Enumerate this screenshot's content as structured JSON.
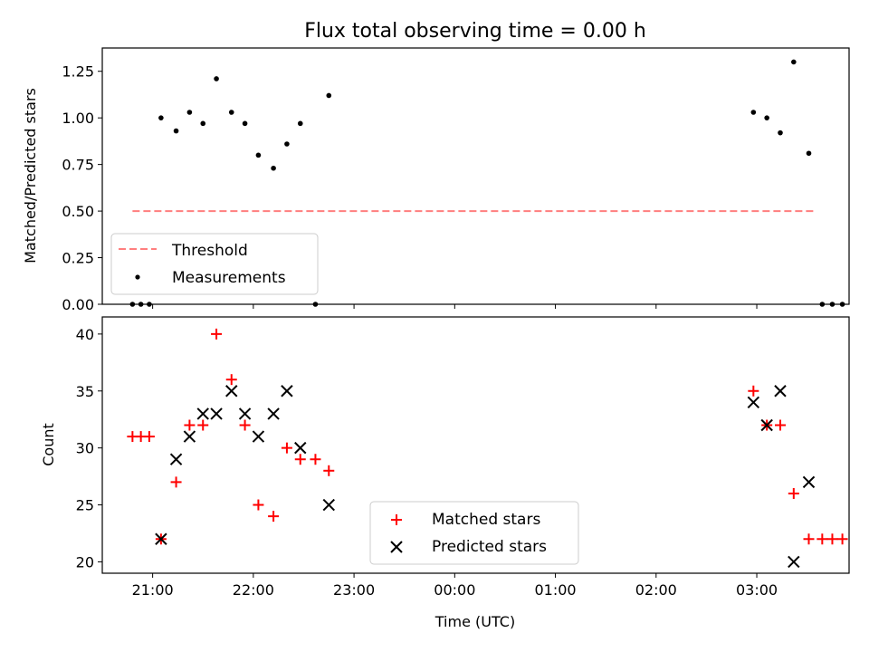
{
  "figure": {
    "title": "Flux total observing time = 0.00 h"
  },
  "chart_data": [
    {
      "type": "scatter",
      "panel": "top",
      "title": "Flux total observing time = 0.00 h",
      "xlabel": "",
      "ylabel": "Matched/Predicted stars",
      "xlim": [
        "20:30",
        "03:55"
      ],
      "ylim": [
        0,
        1.375
      ],
      "yticks": [
        "0.00",
        "0.25",
        "0.50",
        "0.75",
        "1.00",
        "1.25"
      ],
      "legend_position": "lower-left",
      "threshold": {
        "name": "Threshold",
        "color": "#ff7f7f",
        "style": "dashed",
        "value": 0.5,
        "x_range": [
          "20:48",
          "03:35"
        ]
      },
      "series": [
        {
          "name": "Measurements",
          "color": "#000000",
          "marker": "dot",
          "points": [
            {
              "x": "20:48",
              "y": 0.0
            },
            {
              "x": "20:53",
              "y": 0.0
            },
            {
              "x": "20:58",
              "y": 0.0
            },
            {
              "x": "21:05",
              "y": 1.0
            },
            {
              "x": "21:14",
              "y": 0.93
            },
            {
              "x": "21:22",
              "y": 1.03
            },
            {
              "x": "21:30",
              "y": 0.97
            },
            {
              "x": "21:38",
              "y": 1.21
            },
            {
              "x": "21:47",
              "y": 1.03
            },
            {
              "x": "21:55",
              "y": 0.97
            },
            {
              "x": "22:03",
              "y": 0.8
            },
            {
              "x": "22:12",
              "y": 0.73
            },
            {
              "x": "22:20",
              "y": 0.86
            },
            {
              "x": "22:28",
              "y": 0.97
            },
            {
              "x": "22:37",
              "y": 0.0
            },
            {
              "x": "22:45",
              "y": 1.12
            },
            {
              "x": "02:58",
              "y": 1.03
            },
            {
              "x": "03:06",
              "y": 1.0
            },
            {
              "x": "03:14",
              "y": 0.92
            },
            {
              "x": "03:22",
              "y": 1.3
            },
            {
              "x": "03:31",
              "y": 0.81
            },
            {
              "x": "03:39",
              "y": 0.0
            },
            {
              "x": "03:45",
              "y": 0.0
            },
            {
              "x": "03:51",
              "y": 0.0
            }
          ]
        }
      ]
    },
    {
      "type": "scatter",
      "panel": "bottom",
      "title": "",
      "xlabel": "Time (UTC)",
      "ylabel": "Count",
      "xlim": [
        "20:30",
        "03:55"
      ],
      "ylim": [
        19,
        41.5
      ],
      "xticks": [
        "21:00",
        "22:00",
        "23:00",
        "00:00",
        "01:00",
        "02:00",
        "03:00"
      ],
      "yticks": [
        "20",
        "25",
        "30",
        "35",
        "40"
      ],
      "legend_position": "lower-center",
      "series": [
        {
          "name": "Matched stars",
          "color": "#ff0000",
          "marker": "plus",
          "points": [
            {
              "x": "20:48",
              "y": 31
            },
            {
              "x": "20:53",
              "y": 31
            },
            {
              "x": "20:58",
              "y": 31
            },
            {
              "x": "21:05",
              "y": 22
            },
            {
              "x": "21:14",
              "y": 27
            },
            {
              "x": "21:22",
              "y": 32
            },
            {
              "x": "21:30",
              "y": 32
            },
            {
              "x": "21:38",
              "y": 40
            },
            {
              "x": "21:47",
              "y": 36
            },
            {
              "x": "21:55",
              "y": 32
            },
            {
              "x": "22:03",
              "y": 25
            },
            {
              "x": "22:12",
              "y": 24
            },
            {
              "x": "22:20",
              "y": 30
            },
            {
              "x": "22:28",
              "y": 29
            },
            {
              "x": "22:37",
              "y": 29
            },
            {
              "x": "22:45",
              "y": 28
            },
            {
              "x": "02:58",
              "y": 35
            },
            {
              "x": "03:06",
              "y": 32
            },
            {
              "x": "03:14",
              "y": 32
            },
            {
              "x": "03:22",
              "y": 26
            },
            {
              "x": "03:31",
              "y": 22
            },
            {
              "x": "03:39",
              "y": 22
            },
            {
              "x": "03:45",
              "y": 22
            },
            {
              "x": "03:51",
              "y": 22
            }
          ]
        },
        {
          "name": "Predicted stars",
          "color": "#000000",
          "marker": "x",
          "points": [
            {
              "x": "21:05",
              "y": 22
            },
            {
              "x": "21:14",
              "y": 29
            },
            {
              "x": "21:22",
              "y": 31
            },
            {
              "x": "21:30",
              "y": 33
            },
            {
              "x": "21:38",
              "y": 33
            },
            {
              "x": "21:47",
              "y": 35
            },
            {
              "x": "21:55",
              "y": 33
            },
            {
              "x": "22:03",
              "y": 31
            },
            {
              "x": "22:12",
              "y": 33
            },
            {
              "x": "22:20",
              "y": 35
            },
            {
              "x": "22:28",
              "y": 30
            },
            {
              "x": "22:45",
              "y": 25
            },
            {
              "x": "02:58",
              "y": 34
            },
            {
              "x": "03:06",
              "y": 32
            },
            {
              "x": "03:14",
              "y": 35
            },
            {
              "x": "03:22",
              "y": 20
            },
            {
              "x": "03:31",
              "y": 27
            }
          ]
        }
      ]
    }
  ]
}
